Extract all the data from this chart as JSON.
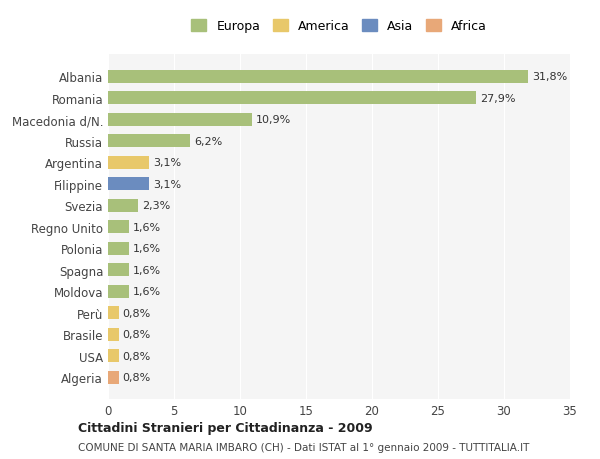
{
  "countries": [
    "Albania",
    "Romania",
    "Macedonia d/N.",
    "Russia",
    "Argentina",
    "Filippine",
    "Svezia",
    "Regno Unito",
    "Polonia",
    "Spagna",
    "Moldova",
    "Perù",
    "Brasile",
    "USA",
    "Algeria"
  ],
  "values": [
    31.8,
    27.9,
    10.9,
    6.2,
    3.1,
    3.1,
    2.3,
    1.6,
    1.6,
    1.6,
    1.6,
    0.8,
    0.8,
    0.8,
    0.8
  ],
  "labels": [
    "31,8%",
    "27,9%",
    "10,9%",
    "6,2%",
    "3,1%",
    "3,1%",
    "2,3%",
    "1,6%",
    "1,6%",
    "1,6%",
    "1,6%",
    "0,8%",
    "0,8%",
    "0,8%",
    "0,8%"
  ],
  "categories": [
    "Europa",
    "Europa",
    "Europa",
    "Europa",
    "America",
    "Asia",
    "Europa",
    "Europa",
    "Europa",
    "Europa",
    "Europa",
    "America",
    "America",
    "America",
    "Africa"
  ],
  "colors": {
    "Europa": "#a8c07a",
    "America": "#e8c86a",
    "Asia": "#6b8cbf",
    "Africa": "#e8a878"
  },
  "legend_labels": [
    "Europa",
    "America",
    "Asia",
    "Africa"
  ],
  "legend_colors": [
    "#a8c07a",
    "#e8c86a",
    "#6b8cbf",
    "#e8a878"
  ],
  "title": "Cittadini Stranieri per Cittadinanza - 2009",
  "subtitle": "COMUNE DI SANTA MARIA IMBARO (CH) - Dati ISTAT al 1° gennaio 2009 - TUTTITALIA.IT",
  "xlim": [
    0,
    35
  ],
  "xticks": [
    0,
    5,
    10,
    15,
    20,
    25,
    30,
    35
  ],
  "bg_color": "#ffffff",
  "plot_bg_color": "#f5f5f5"
}
